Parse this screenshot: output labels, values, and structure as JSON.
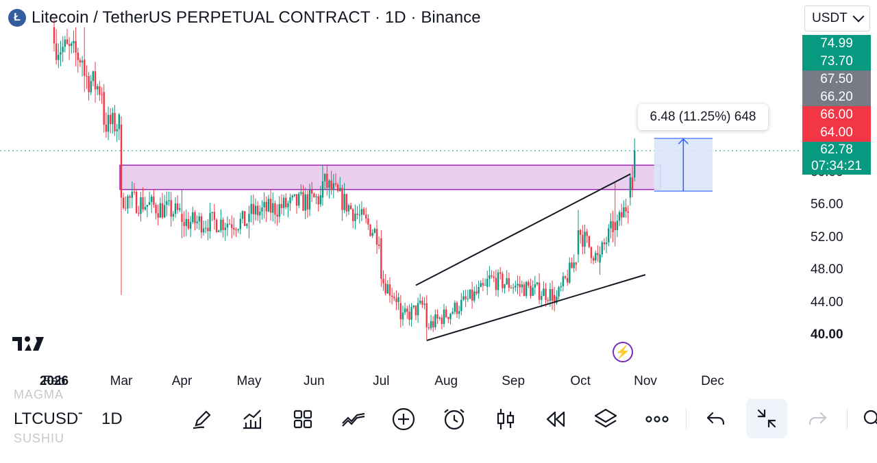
{
  "header": {
    "coin_logo_letter": "Ł",
    "title": "Litecoin / TetherUS PERPETUAL CONTRACT · 1D · Binance",
    "currency": "USDT"
  },
  "price_labels": [
    {
      "text": "74.99",
      "color": "#089981"
    },
    {
      "text": "73.70",
      "color": "#089981"
    },
    {
      "text": "67.50",
      "color": "#787b86"
    },
    {
      "text": "66.20",
      "color": "#787b86"
    },
    {
      "text": "66.00",
      "color": "#f23645"
    },
    {
      "text": "64.00",
      "color": "#f23645"
    }
  ],
  "last_price": {
    "price": "62.78",
    "countdown": "07:34:21",
    "color": "#089981"
  },
  "measure_tooltip": "6.48 (11.25%) 648",
  "toolbar": {
    "symbol": "LTCUSDT",
    "interval": "1D",
    "ghost_above": "MAGMA",
    "ghost_below": "SUSHIU"
  },
  "tools": [
    {
      "name": "draw-pen-icon"
    },
    {
      "name": "indicators-icon"
    },
    {
      "name": "layouts-grid-icon"
    },
    {
      "name": "compare-lines-icon"
    },
    {
      "name": "add-circle-icon"
    },
    {
      "name": "alarm-clock-icon"
    },
    {
      "name": "candles-icon"
    },
    {
      "name": "replay-icon"
    },
    {
      "name": "layers-icon"
    },
    {
      "name": "more-icon"
    },
    {
      "name": "undo-icon"
    },
    {
      "name": "collapse-icon"
    },
    {
      "name": "redo-icon"
    }
  ],
  "chart_data": {
    "type": "candlestick",
    "x_tick_labels": [
      "2026",
      "Feb",
      "Mar",
      "Apr",
      "May",
      "Jun",
      "Jul",
      "Aug",
      "Sep",
      "Oct",
      "Nov",
      "Dec"
    ],
    "y_tick_labels": [
      "60.00",
      "56.00",
      "52.00",
      "48.00",
      "44.00",
      "40.00"
    ],
    "y_range": [
      39,
      79
    ],
    "up_color": "#089981",
    "down_color": "#f23645",
    "resistance_zone": {
      "low": 58.0,
      "high": 61.0,
      "color": "#e1bee7"
    },
    "wedge_upper_line": {
      "from": {
        "date": "2026-06-17",
        "price": 46.2
      },
      "to": {
        "date": "2026-09-24",
        "price": 59.9
      }
    },
    "wedge_lower_line": {
      "from": {
        "date": "2026-06-22",
        "price": 39.4
      },
      "to": {
        "date": "2026-10-01",
        "price": 47.5
      }
    },
    "measure": {
      "from_price": 57.8,
      "to_price": 64.3,
      "from_date": "2026-10-05",
      "to_date": "2026-11-01"
    },
    "current_price_line": 62.78,
    "closes": [
      {
        "date": "2026-01-01",
        "o": 78,
        "h": 79,
        "c": 76,
        "l": 75
      },
      {
        "date": "2026-01-15",
        "o": 74,
        "h": 78,
        "c": 72,
        "l": 70
      },
      {
        "date": "2026-01-24",
        "o": 70,
        "h": 71,
        "c": 66,
        "l": 65
      },
      {
        "date": "2026-02-01",
        "o": 66,
        "h": 67,
        "c": 57,
        "l": 45
      },
      {
        "date": "2026-03-01",
        "o": 55,
        "h": 58,
        "c": 54,
        "l": 52
      },
      {
        "date": "2026-04-01",
        "o": 54,
        "h": 56,
        "c": 55,
        "l": 52
      },
      {
        "date": "2026-05-05",
        "o": 57,
        "h": 61,
        "c": 59,
        "l": 56
      },
      {
        "date": "2026-06-01",
        "o": 52,
        "h": 53,
        "c": 47,
        "l": 46
      },
      {
        "date": "2026-06-10",
        "o": 44,
        "h": 45,
        "c": 42,
        "l": 41
      },
      {
        "date": "2026-06-22",
        "o": 44,
        "h": 45,
        "c": 41,
        "l": 39.5
      },
      {
        "date": "2026-07-20",
        "o": 46,
        "h": 48,
        "c": 47,
        "l": 45
      },
      {
        "date": "2026-08-20",
        "o": 45,
        "h": 46,
        "c": 44,
        "l": 43
      },
      {
        "date": "2026-08-31",
        "o": 50,
        "h": 55.5,
        "c": 53,
        "l": 49
      },
      {
        "date": "2026-09-10",
        "o": 49,
        "h": 51,
        "c": 50,
        "l": 47.5
      },
      {
        "date": "2026-09-17",
        "o": 54,
        "h": 59,
        "c": 53,
        "l": 51
      },
      {
        "date": "2026-09-24",
        "o": 57,
        "h": 60,
        "c": 59.5,
        "l": 56
      },
      {
        "date": "2026-09-26",
        "o": 59.5,
        "h": 64.3,
        "c": 62.78,
        "l": 59
      }
    ]
  }
}
